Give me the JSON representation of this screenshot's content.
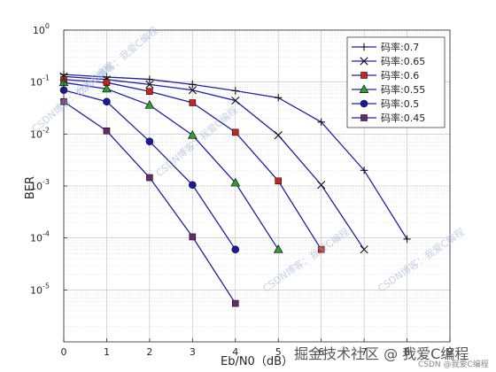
{
  "chart_data": {
    "type": "line",
    "xlabel": "Eb/N0（dB）",
    "ylabel": "BER",
    "xlim": [
      0,
      9
    ],
    "ylim": [
      1e-06,
      1
    ],
    "yscale": "log",
    "x_ticks": [
      "0",
      "1",
      "2",
      "3",
      "4",
      "5",
      "6",
      "7",
      "8",
      "9"
    ],
    "y_ticks": [
      {
        "base": "10",
        "exp": "0",
        "value": 1
      },
      {
        "base": "10",
        "exp": "-1",
        "value": 0.1
      },
      {
        "base": "10",
        "exp": "-2",
        "value": 0.01
      },
      {
        "base": "10",
        "exp": "-3",
        "value": 0.001
      },
      {
        "base": "10",
        "exp": "-4",
        "value": 0.0001
      },
      {
        "base": "10",
        "exp": "-5",
        "value": 1e-05
      }
    ],
    "grid": true,
    "legend_position": "top-right",
    "series": [
      {
        "name": "码率:0.7",
        "marker": "plus",
        "color": "#1f1fa8",
        "x": [
          0,
          1,
          2,
          3,
          4,
          5,
          6,
          7,
          8
        ],
        "values": [
          0.14,
          0.125,
          0.113,
          0.09,
          0.068,
          0.05,
          0.017,
          0.002,
          9.5e-05
        ]
      },
      {
        "name": "码率:0.65",
        "marker": "x",
        "color": "#1f1fa8",
        "x": [
          0,
          1,
          2,
          3,
          4,
          5,
          6,
          7
        ],
        "values": [
          0.128,
          0.112,
          0.09,
          0.07,
          0.044,
          0.0095,
          0.00105,
          6e-05
        ]
      },
      {
        "name": "码率:0.6",
        "marker": "square",
        "color": "#1f1fa8",
        "marker_fill": "#cc2222",
        "x": [
          0,
          1,
          2,
          3,
          4,
          5,
          6
        ],
        "values": [
          0.112,
          0.098,
          0.066,
          0.04,
          0.0108,
          0.00125,
          6e-05
        ]
      },
      {
        "name": "码率:0.55",
        "marker": "triangle",
        "color": "#1f1fa8",
        "marker_fill": "#2fa02f",
        "x": [
          0,
          1,
          2,
          3,
          4,
          5
        ],
        "values": [
          0.098,
          0.074,
          0.036,
          0.0095,
          0.00115,
          6e-05
        ]
      },
      {
        "name": "码率:0.5",
        "marker": "circle",
        "color": "#1f1fa8",
        "marker_fill": "#1a1aa0",
        "x": [
          0,
          1,
          2,
          3,
          4
        ],
        "values": [
          0.07,
          0.042,
          0.0072,
          0.00105,
          6e-05
        ]
      },
      {
        "name": "码率:0.45",
        "marker": "square",
        "color": "#1f1fa8",
        "marker_fill": "#6a2a6a",
        "x": [
          0,
          1,
          2,
          3,
          4
        ],
        "values": [
          0.042,
          0.0115,
          0.00145,
          0.000105,
          5.5e-06
        ]
      }
    ]
  },
  "watermarks": {
    "mark1": "CSDN博客：我爱C编程",
    "mark2": "掘金技术社区 @ 我爱C编程",
    "mark3": "CSDN @我爱C编程"
  }
}
